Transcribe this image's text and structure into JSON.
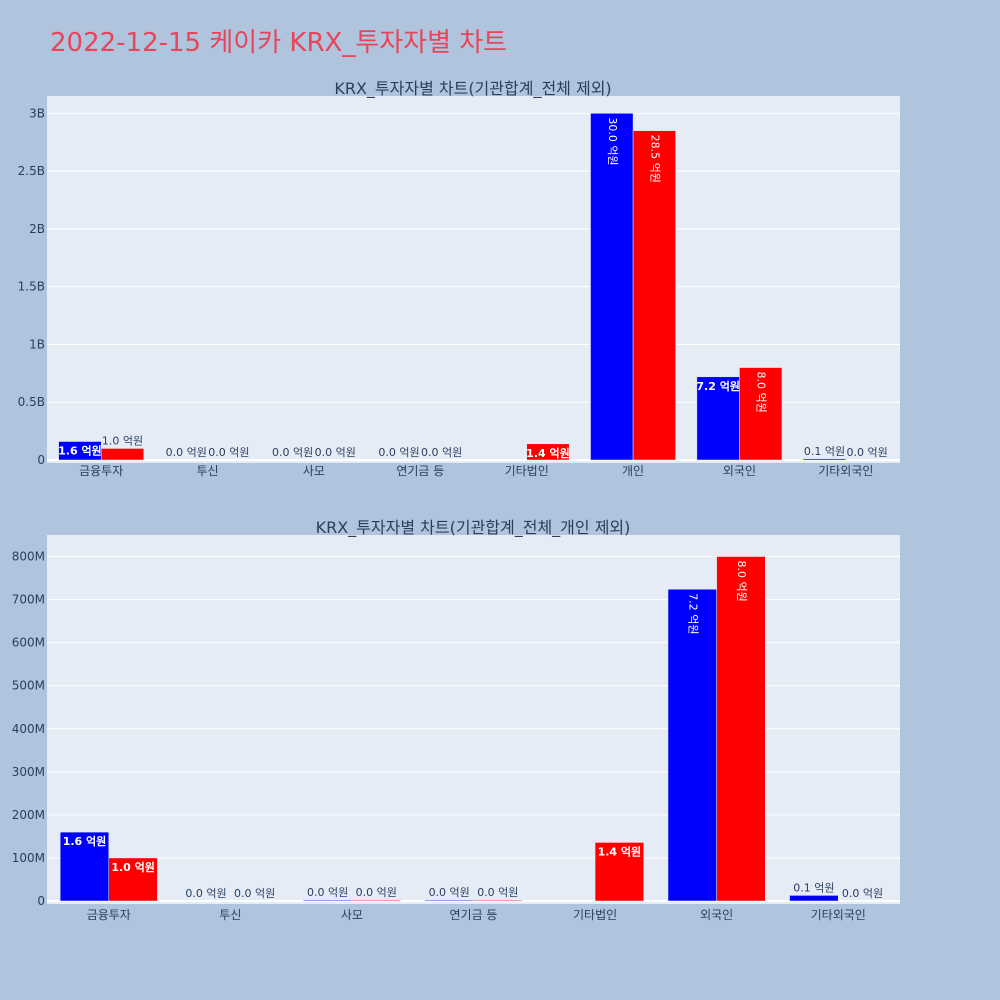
{
  "page_title": "2022-12-15 케이카 KRX_투자자별 차트",
  "colors": {
    "background": "#b0c4de",
    "plot_bg": "#e5ecf6",
    "title": "#e8455a",
    "series_a": "#0000ff",
    "series_b": "#ff0000",
    "text": "#2a3f5f"
  },
  "chart_data": [
    {
      "type": "bar",
      "title": "KRX_투자자별 차트(기관합계_전체 제외)",
      "categories": [
        "금융투자",
        "투신",
        "사모",
        "연기금 등",
        "기타법인",
        "개인",
        "외국인",
        "기타외국인"
      ],
      "series": [
        {
          "values": [
            160000000,
            0,
            0,
            0,
            0,
            3000000000,
            720000000,
            10000000
          ],
          "labels": [
            "1.6 억원",
            "0.0 억원",
            "0.0 억원",
            "0.0 억원",
            "",
            "30.0 억원",
            "7.2 억원",
            "0.1 억원"
          ]
        },
        {
          "values": [
            100000000,
            0,
            0,
            0,
            140000000,
            2850000000,
            800000000,
            0
          ],
          "labels": [
            "1.0 억원",
            "0.0 억원",
            "0.0 억원",
            "0.0 억원",
            "1.4 억원",
            "28.5 억원",
            "8.0 억원",
            "0.0 억원"
          ]
        }
      ],
      "ylim": [
        0,
        3150000000
      ],
      "ytick_values": [
        0,
        500000000,
        1000000000,
        1500000000,
        2000000000,
        2500000000,
        3000000000
      ],
      "ytick_labels": [
        "0",
        "0.5B",
        "1B",
        "1.5B",
        "2B",
        "2.5B",
        "3B"
      ],
      "grid": true,
      "legend": "none"
    },
    {
      "type": "bar",
      "title": "KRX_투자자별 차트(기관합계_전체_개인 제외)",
      "categories": [
        "금융투자",
        "투신",
        "사모",
        "연기금 등",
        "기타법인",
        "외국인",
        "기타외국인"
      ],
      "series": [
        {
          "values": [
            160000000,
            0,
            2000000,
            2000000,
            0,
            724000000,
            13000000
          ],
          "labels": [
            "1.6 억원",
            "0.0 억원",
            "0.0 억원",
            "0.0 억원",
            "",
            "7.2 억원",
            "0.1 억원"
          ]
        },
        {
          "values": [
            100000000,
            0,
            2000000,
            2000000,
            136000000,
            800000000,
            0
          ],
          "labels": [
            "1.0 억원",
            "0.0 억원",
            "0.0 억원",
            "0.0 억원",
            "1.4 억원",
            "8.0 억원",
            "0.0 억원"
          ]
        }
      ],
      "ylim": [
        0,
        850000000
      ],
      "ytick_values": [
        0,
        100000000,
        200000000,
        300000000,
        400000000,
        500000000,
        600000000,
        700000000,
        800000000
      ],
      "ytick_labels": [
        "0",
        "100M",
        "200M",
        "300M",
        "400M",
        "500M",
        "600M",
        "700M",
        "800M"
      ],
      "grid": true,
      "legend": "none"
    }
  ]
}
